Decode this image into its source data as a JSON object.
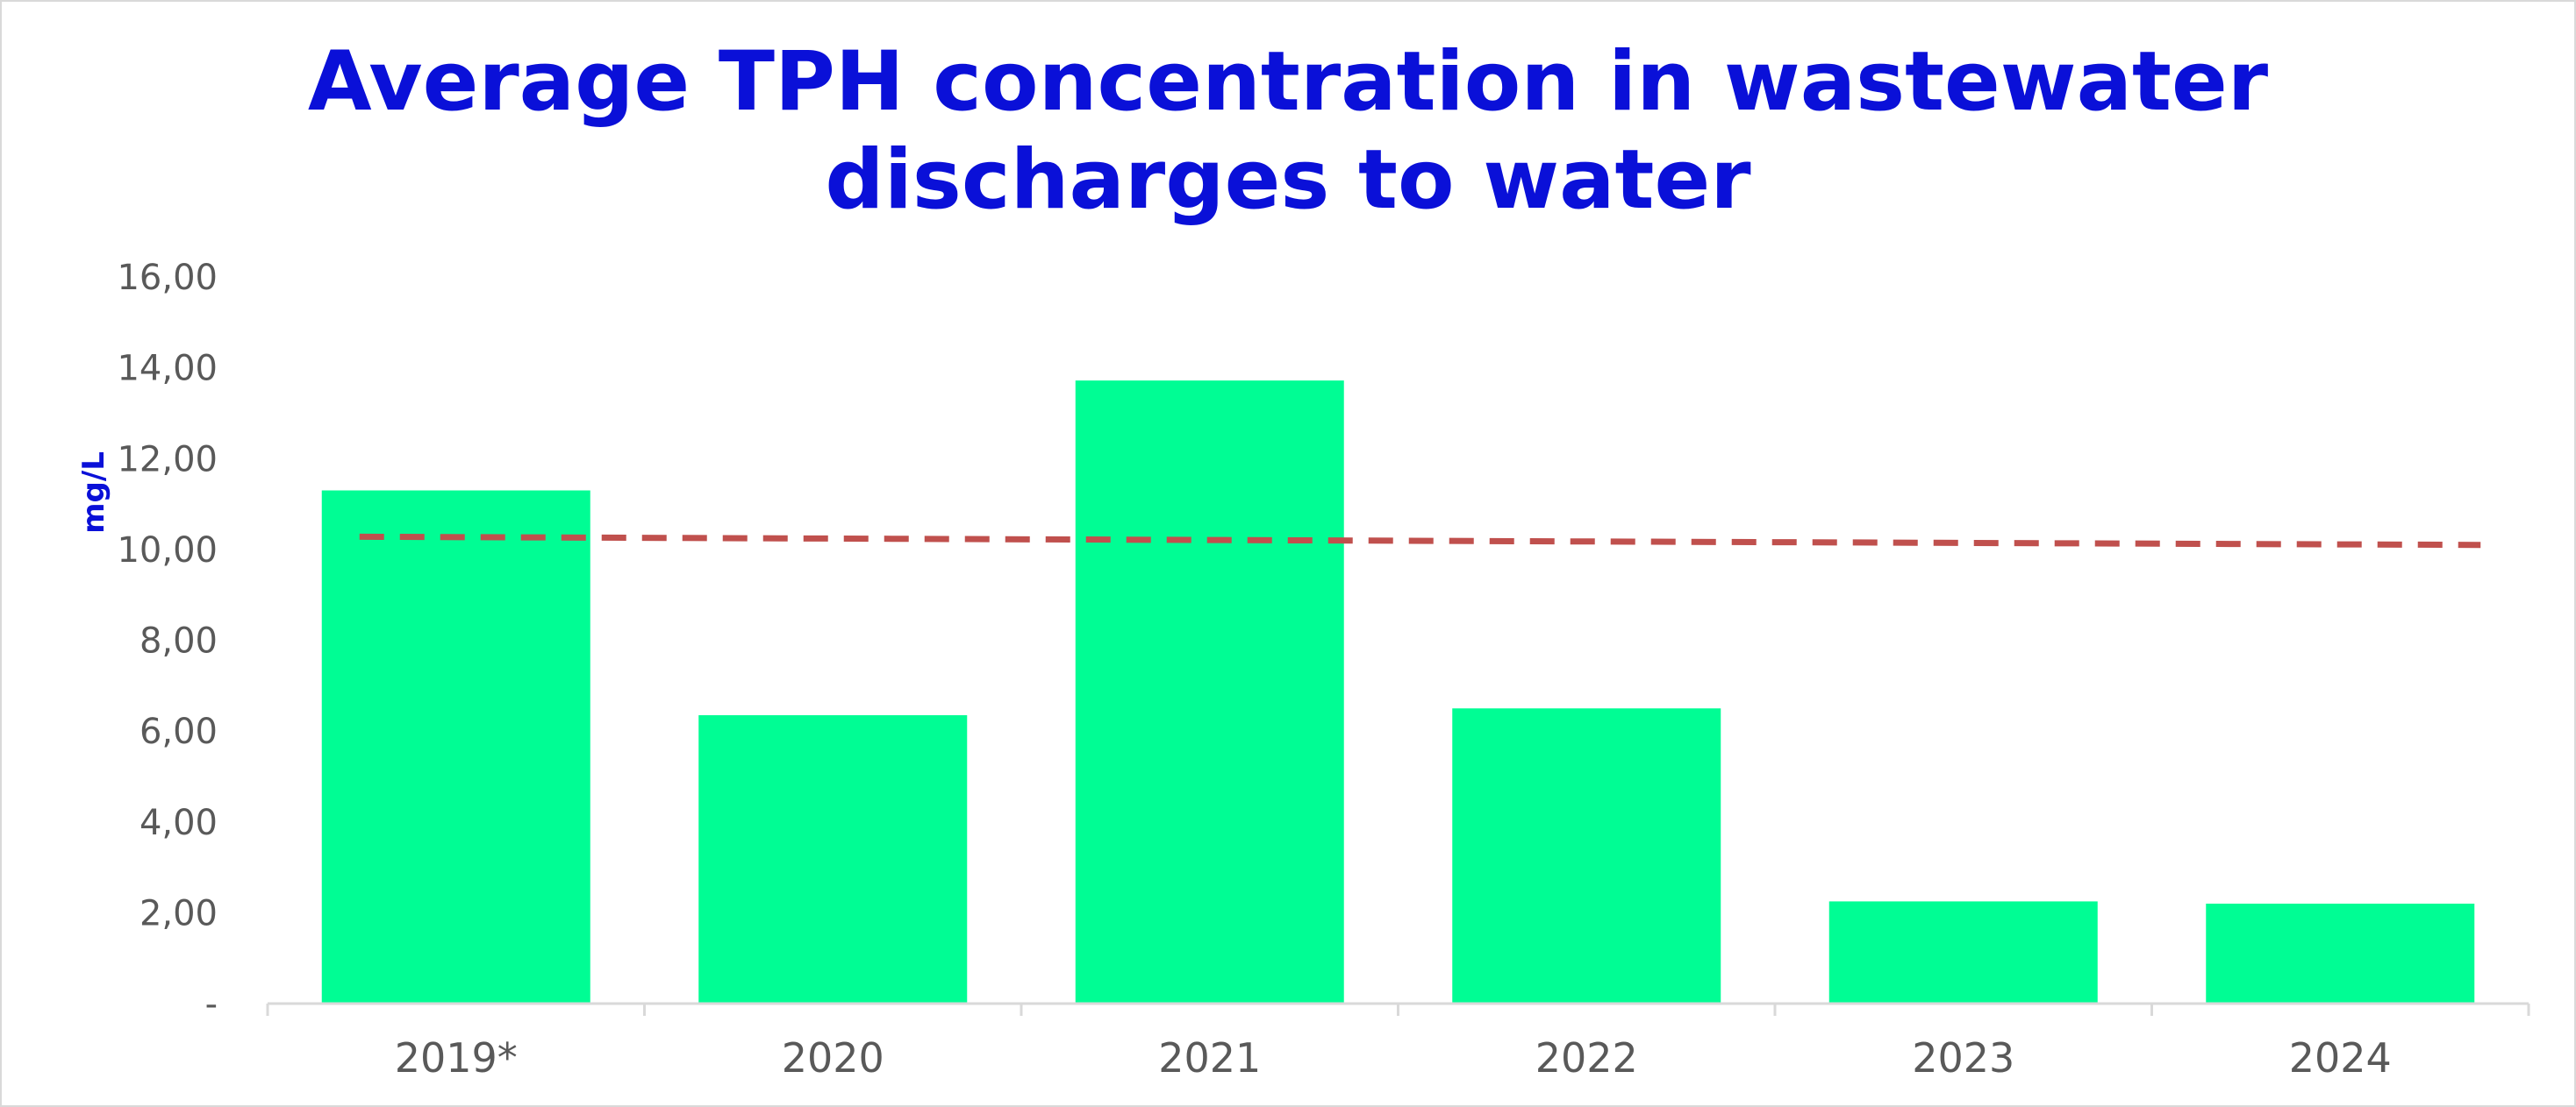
{
  "chart_data": {
    "type": "bar",
    "title_lines": [
      "Average TPH concentration in wastewater",
      "discharges to water"
    ],
    "ylabel": "mg/L",
    "xlabel": "",
    "categories": [
      "2019*",
      "2020",
      "2021",
      "2022",
      "2023",
      "2024"
    ],
    "series": [
      {
        "values": [
          11.3,
          6.35,
          13.72,
          6.5,
          2.25,
          2.2
        ],
        "color": "#00fd94"
      }
    ],
    "trendline": {
      "style": "dashed",
      "color": "#c0504d",
      "start_value": 10.28,
      "end_value": 10.1
    },
    "ylim": [
      0,
      16
    ],
    "yticks": [
      0,
      2,
      4,
      6,
      8,
      10,
      12,
      14,
      16
    ],
    "ytick_labels": [
      "-",
      "2,00",
      "4,00",
      "6,00",
      "8,00",
      "10,00",
      "12,00",
      "14,00",
      "16,00"
    ],
    "grid": false,
    "legend": "none"
  }
}
